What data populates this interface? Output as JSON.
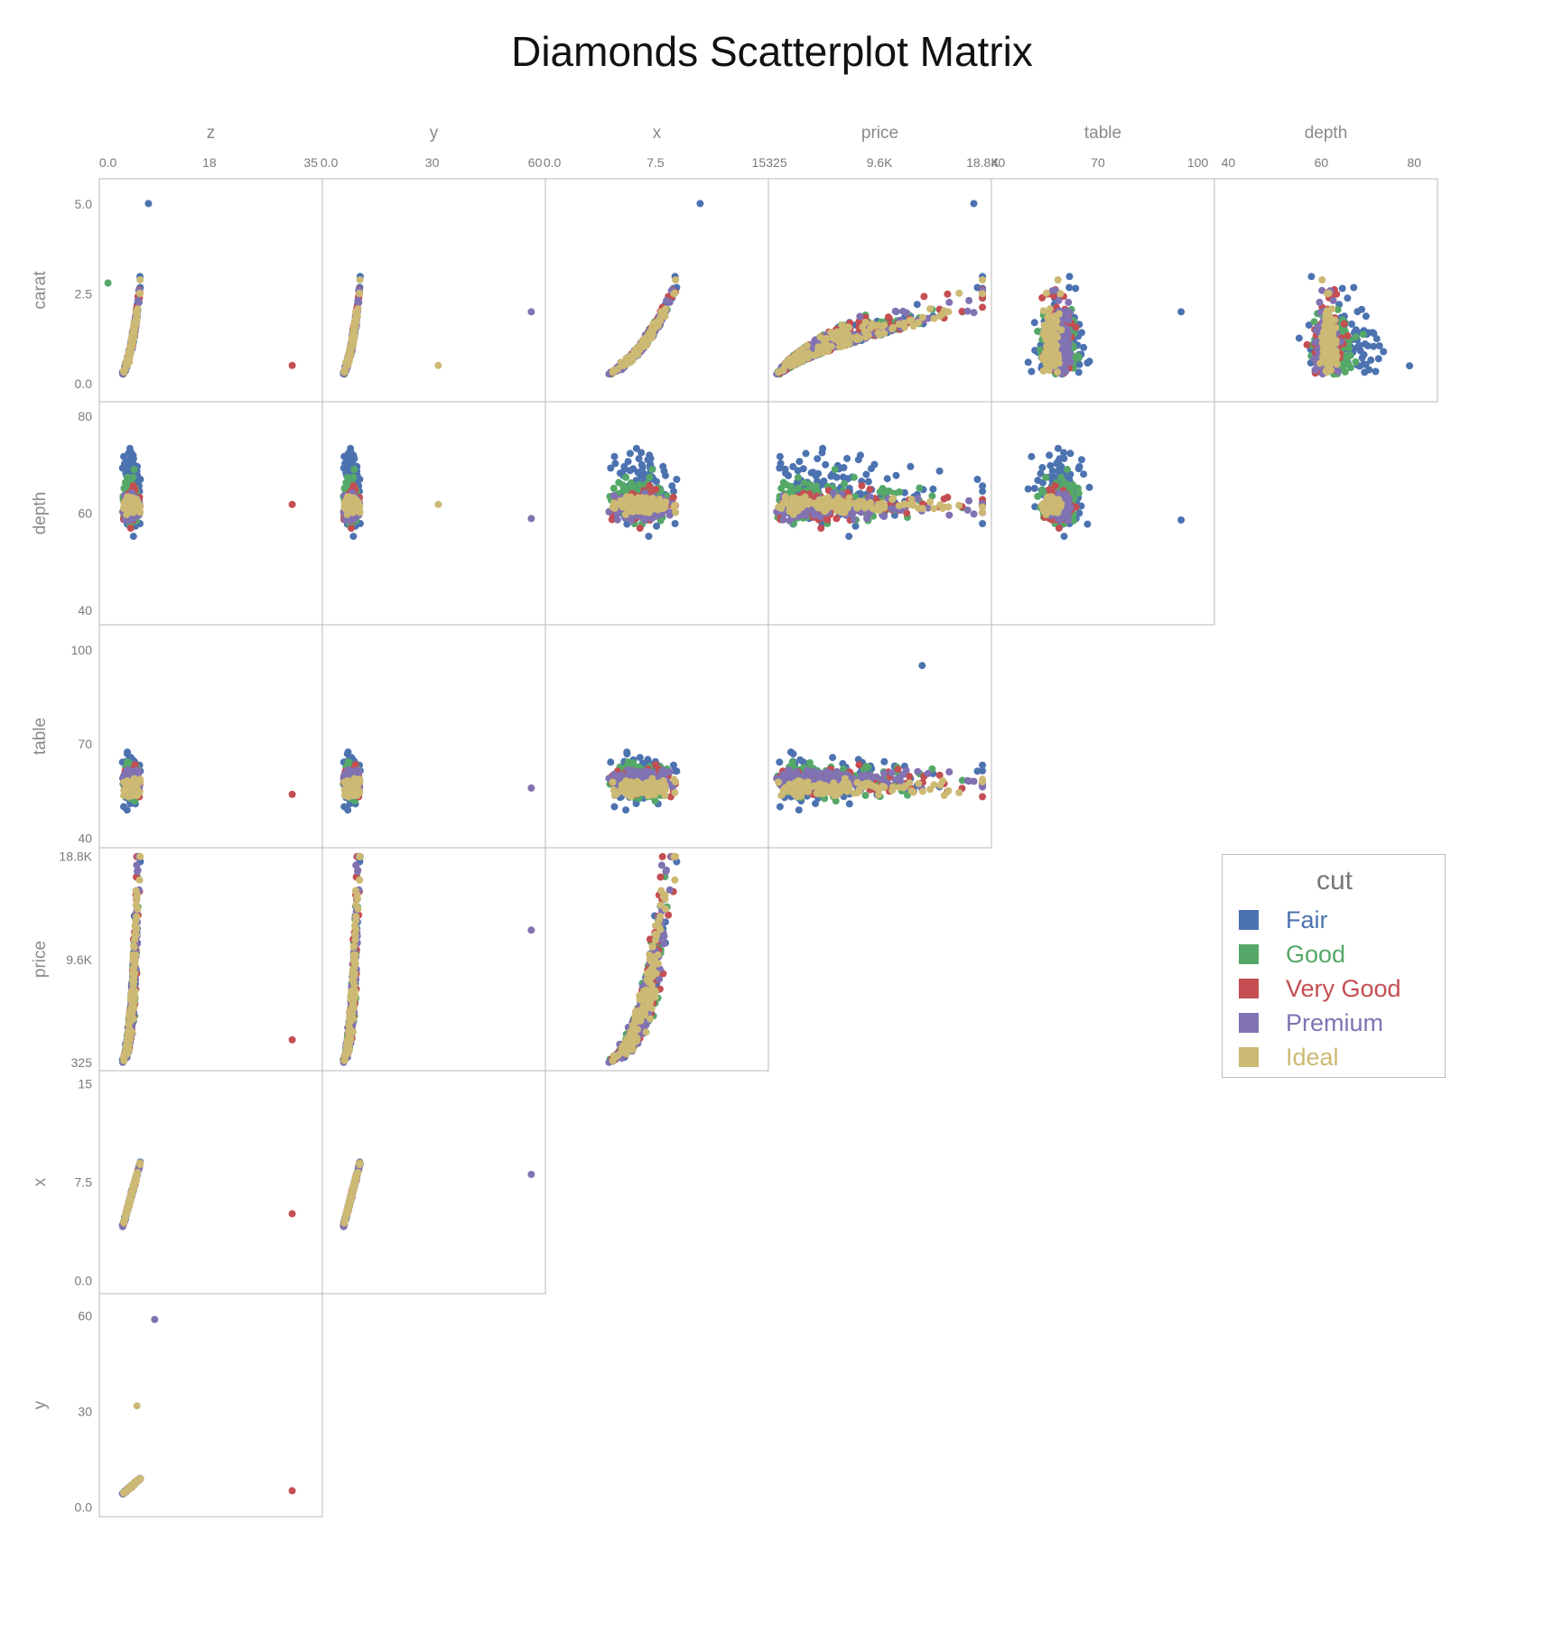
{
  "chart_data": {
    "type": "scatter",
    "title": "Diamonds Scatterplot Matrix",
    "columns": [
      {
        "var": "z",
        "ticks": [
          "0.0",
          "18",
          "35"
        ],
        "tick_values": [
          0,
          17.5,
          35
        ],
        "range": [
          -1.5,
          37
        ]
      },
      {
        "var": "y",
        "ticks": [
          "0.0",
          "30",
          "60"
        ],
        "tick_values": [
          0,
          30,
          60
        ],
        "range": [
          -2,
          63
        ]
      },
      {
        "var": "x",
        "ticks": [
          "0.0",
          "7.5",
          "15"
        ],
        "tick_values": [
          0,
          7.5,
          15
        ],
        "range": [
          -0.5,
          15.7
        ]
      },
      {
        "var": "price",
        "ticks": [
          "325",
          "9.6K",
          "18.8K"
        ],
        "tick_values": [
          325,
          9569,
          18823
        ],
        "range": [
          -400,
          19600
        ]
      },
      {
        "var": "table",
        "ticks": [
          "40",
          "70",
          "100"
        ],
        "tick_values": [
          40,
          70,
          100
        ],
        "range": [
          38,
          105
        ]
      },
      {
        "var": "depth",
        "ticks": [
          "40",
          "60",
          "80"
        ],
        "tick_values": [
          40,
          60,
          80
        ],
        "range": [
          37,
          85
        ]
      }
    ],
    "rows": [
      {
        "var": "carat",
        "ticks": [
          "5.0",
          "2.5",
          "0.0"
        ],
        "tick_values": [
          5,
          2.5,
          0
        ],
        "range": [
          -0.5,
          5.7
        ]
      },
      {
        "var": "depth",
        "ticks": [
          "80",
          "60",
          "40"
        ],
        "tick_values": [
          80,
          60,
          40
        ],
        "range": [
          37,
          83
        ]
      },
      {
        "var": "table",
        "ticks": [
          "100",
          "70",
          "40"
        ],
        "tick_values": [
          100,
          70,
          40
        ],
        "range": [
          37,
          108
        ]
      },
      {
        "var": "price",
        "ticks": [
          "18.8K",
          "9.6K",
          "325"
        ],
        "tick_values": [
          18823,
          9569,
          325
        ],
        "range": [
          -400,
          19600
        ]
      },
      {
        "var": "x",
        "ticks": [
          "15",
          "7.5",
          "0.0"
        ],
        "tick_values": [
          15,
          7.5,
          0
        ],
        "range": [
          -1,
          16
        ]
      },
      {
        "var": "y",
        "ticks": [
          "60",
          "30",
          "0.0"
        ],
        "tick_values": [
          60,
          30,
          0
        ],
        "range": [
          -3,
          67
        ]
      }
    ],
    "legend": {
      "title": "cut",
      "position": "right",
      "items": [
        {
          "label": "Fair",
          "color": "#4c72b0"
        },
        {
          "label": "Good",
          "color": "#55a868"
        },
        {
          "label": "Very Good",
          "color": "#c44e52"
        },
        {
          "label": "Premium",
          "color": "#8172b2"
        },
        {
          "label": "Ideal",
          "color": "#ccb974"
        }
      ]
    },
    "grid": false,
    "point_summary": [
      {
        "panel": "carat-vs-z",
        "series": "Very Good",
        "x": 31.8,
        "y": 0.51
      },
      {
        "panel": "carat-vs-z",
        "series": "Fair",
        "x": 6.98,
        "y": 5.01
      },
      {
        "panel": "carat-vs-z",
        "series": "Good",
        "x": 0,
        "y": 2.8
      },
      {
        "panel": "carat-vs-y",
        "series": "Premium",
        "x": 58.9,
        "y": 2.0
      },
      {
        "panel": "carat-vs-y",
        "series": "Ideal",
        "x": 31.8,
        "y": 0.51
      },
      {
        "panel": "carat-vs-x",
        "series": "Fair",
        "x": 10.74,
        "y": 5.01
      },
      {
        "panel": "carat-vs-price",
        "series": "Fair",
        "x": 18018,
        "y": 5.01
      },
      {
        "panel": "carat-vs-table",
        "series": "Fair",
        "x": 95,
        "y": 2.0
      },
      {
        "panel": "carat-vs-depth",
        "series": "Fair",
        "x": 79,
        "y": 0.5
      },
      {
        "panel": "depth-vs-z",
        "series": "Very Good",
        "x": 31.8,
        "y": 61.8
      },
      {
        "panel": "depth-vs-y",
        "series": "Premium",
        "x": 58.9,
        "y": 58.9
      },
      {
        "panel": "depth-vs-y",
        "series": "Ideal",
        "x": 31.8,
        "y": 61.8
      },
      {
        "panel": "depth-vs-table",
        "series": "Fair",
        "x": 95,
        "y": 58.6
      },
      {
        "panel": "table-vs-z",
        "series": "Very Good",
        "x": 31.8,
        "y": 54
      },
      {
        "panel": "table-vs-y",
        "series": "Premium",
        "x": 58.9,
        "y": 56
      },
      {
        "panel": "table-vs-price",
        "series": "Fair",
        "x": 13387,
        "y": 95
      },
      {
        "panel": "price-vs-z",
        "series": "Very Good",
        "x": 31.8,
        "y": 2366
      },
      {
        "panel": "price-vs-y",
        "series": "Premium",
        "x": 58.9,
        "y": 12210
      },
      {
        "panel": "x-vs-z",
        "series": "Very Good",
        "x": 31.8,
        "y": 5.1
      },
      {
        "panel": "x-vs-y",
        "series": "Premium",
        "x": 58.9,
        "y": 8.09
      },
      {
        "panel": "y-vs-z",
        "series": "Premium",
        "x": 8.06,
        "y": 58.9
      },
      {
        "panel": "y-vs-z",
        "series": "Very Good",
        "x": 31.8,
        "y": 5.12
      },
      {
        "panel": "y-vs-z",
        "series": "Ideal",
        "x": 5.0,
        "y": 31.8
      }
    ]
  }
}
